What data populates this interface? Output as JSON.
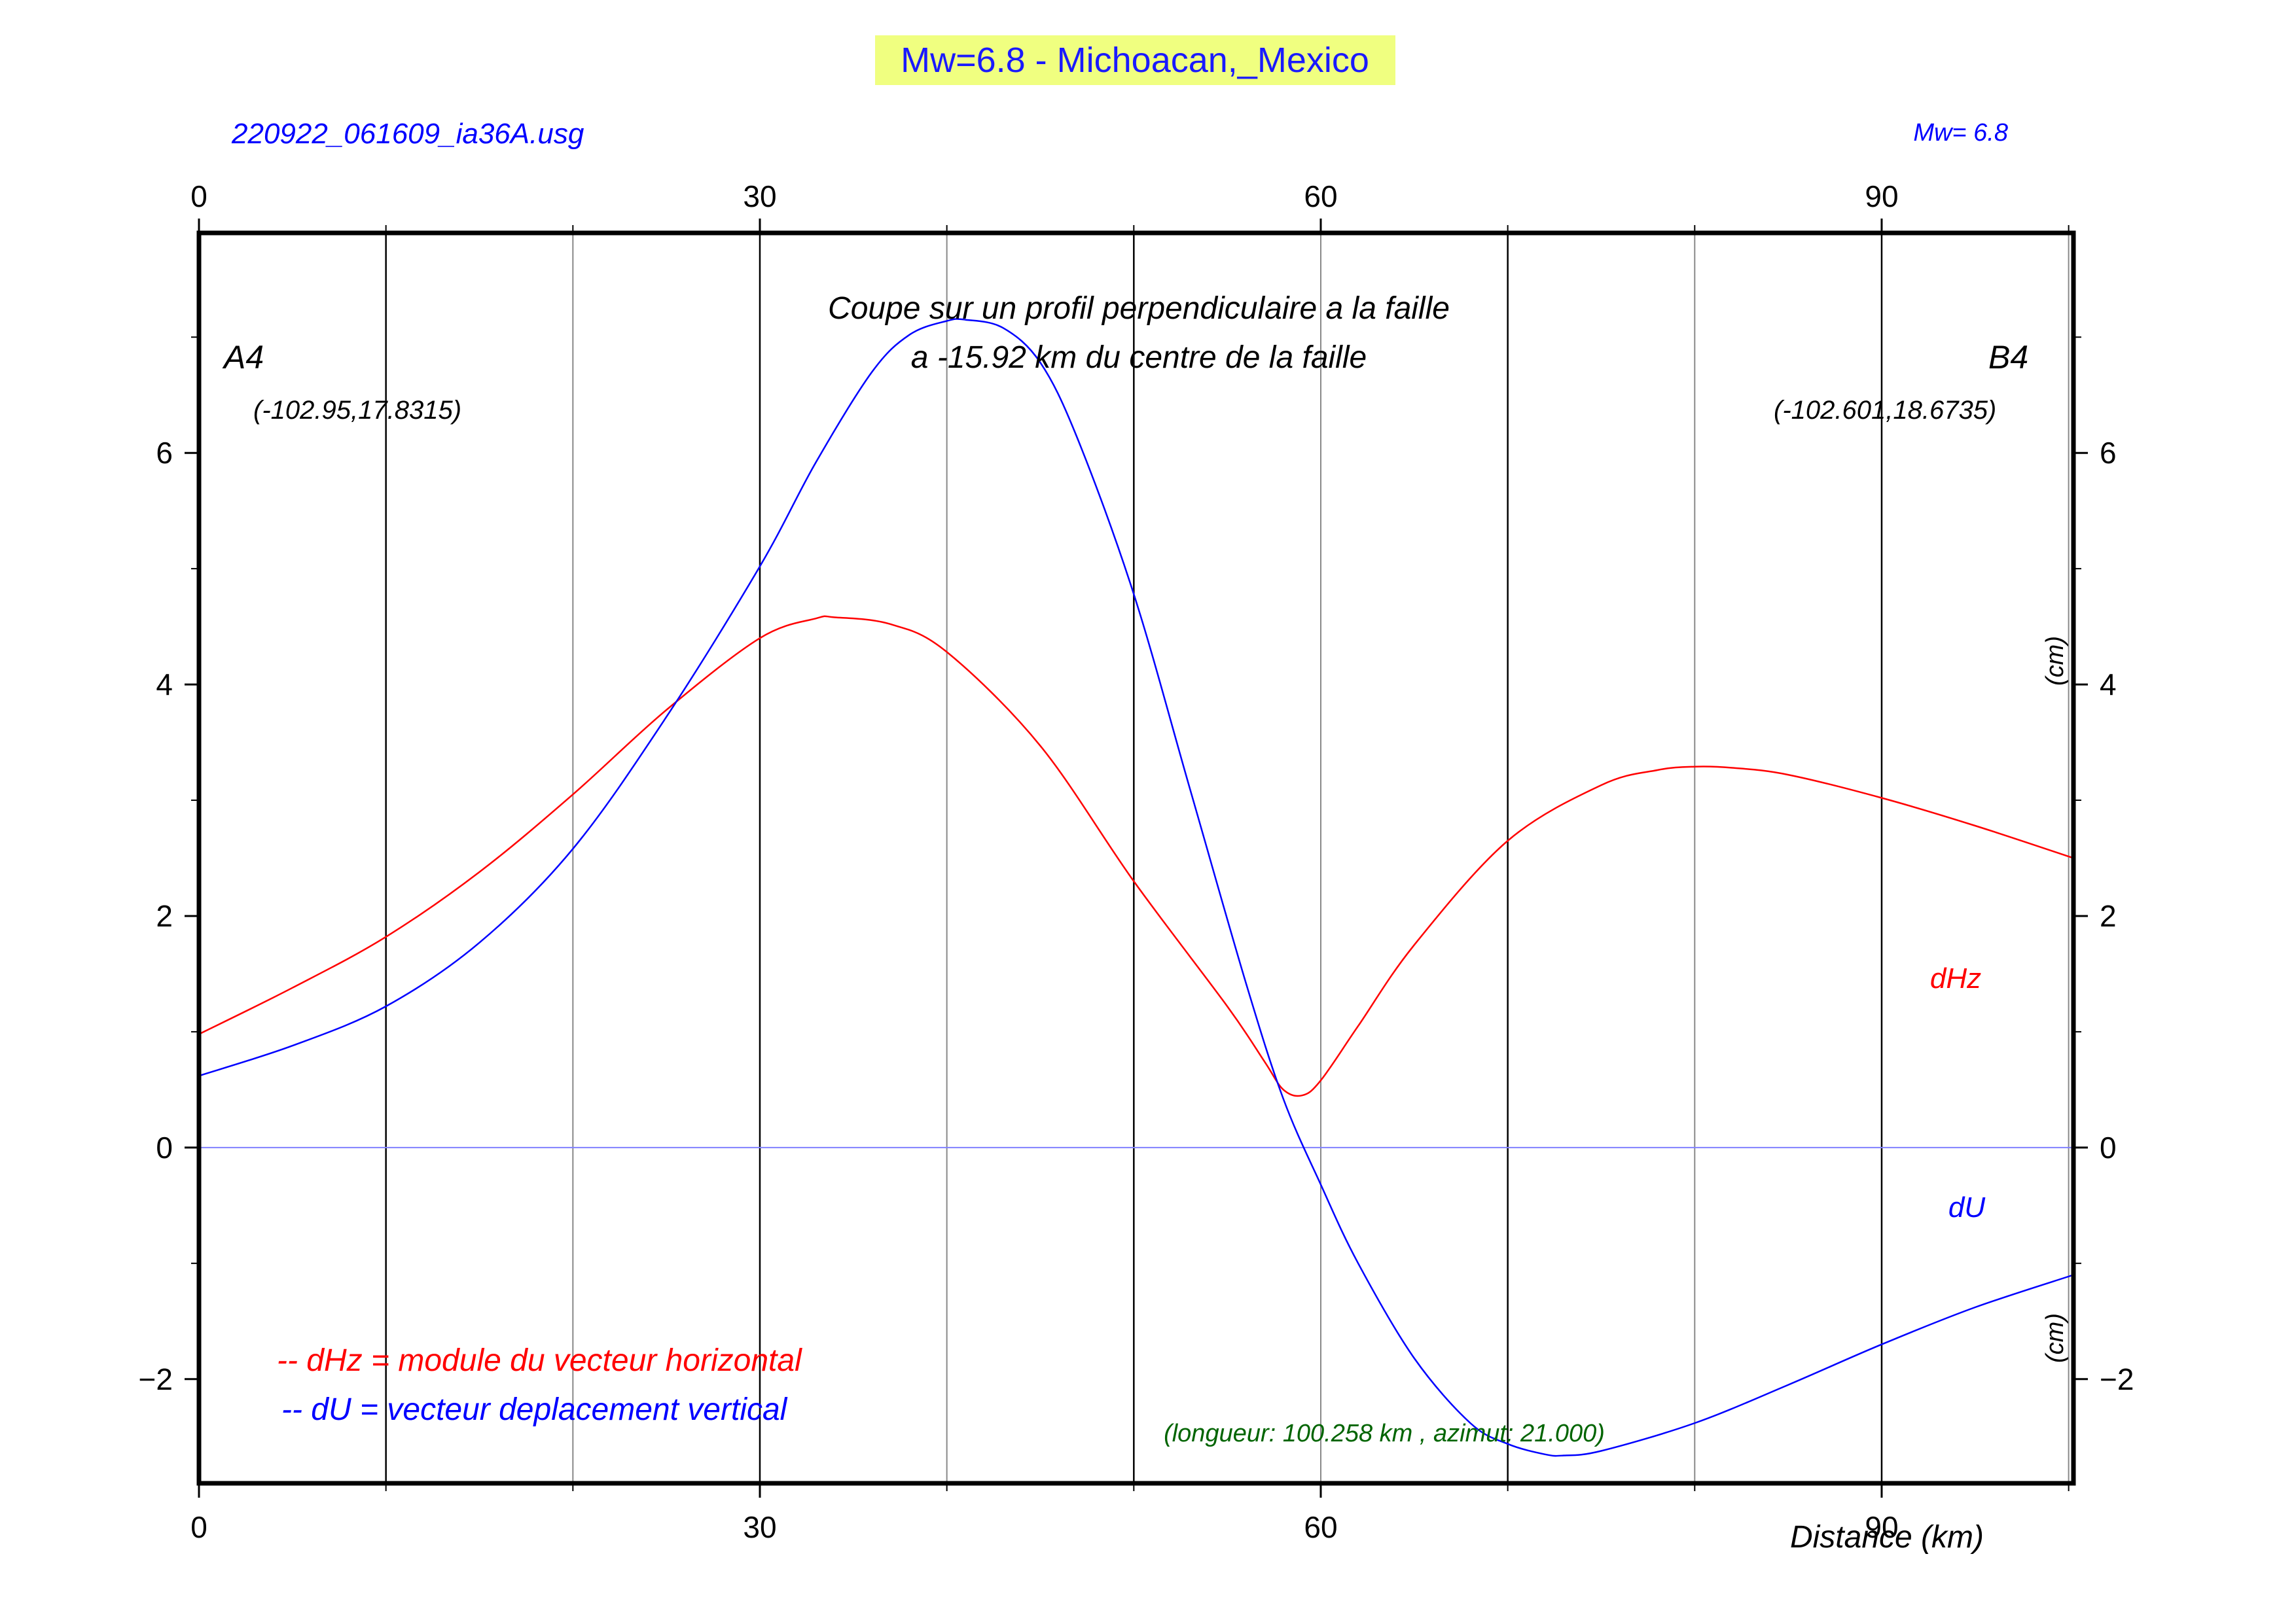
{
  "colors": {
    "title_bg": "#f0ff80",
    "title_text": "#1a1aff",
    "blue": "#0000ff",
    "red": "#ff0000",
    "green": "#006400",
    "grid_dark": "#000000",
    "grid_light": "#888888",
    "zero_line": "#8080ff"
  },
  "header": {
    "title": "Mw=6.8 - Michoacan,_Mexico",
    "file_label": "220922_061609_ia36A.usg",
    "magnitude_label": "Mw= 6.8"
  },
  "annotations": {
    "profile_line1": "Coupe sur un profil perpendiculaire a la faille",
    "profile_line2": "a -15.92 km du centre de la faille",
    "start_point": "A4",
    "start_coords": "(-102.95,17.8315)",
    "end_point": "B4",
    "end_coords": "(-102.601,18.6735)",
    "legend_dhz": "-- dHz = module du vecteur horizontal",
    "legend_du": "-- dU =  vecteur deplacement vertical",
    "label_dhz": "dHz",
    "label_du": "dU",
    "unit_upper": "(cm)",
    "unit_lower": "(cm)",
    "length_info": "(longueur: 100.258 km , azimut: 21.000)",
    "x_axis_label": "Distance (km)"
  },
  "chart_data": {
    "type": "line",
    "title": "Mw=6.8 - Michoacan,_Mexico",
    "xlabel": "Distance (km)",
    "ylabel": "(cm)",
    "xlim": [
      0,
      100.258
    ],
    "ylim": [
      -2.9,
      7.9
    ],
    "x_ticks": [
      0,
      30,
      60,
      90
    ],
    "y_ticks": [
      -2,
      0,
      2,
      4,
      6
    ],
    "x_tick_labels": [
      "0",
      "30",
      "60",
      "90"
    ],
    "y_tick_labels": [
      "−2",
      "0",
      "2",
      "4",
      "6"
    ],
    "grid_x": [
      10,
      20,
      30,
      40,
      50,
      60,
      70,
      80,
      90,
      100
    ],
    "grid": true,
    "series": [
      {
        "name": "dHz",
        "color": "#ff0000",
        "x": [
          0,
          5,
          10,
          15,
          20,
          25,
          30,
          33,
          34,
          37,
          40,
          45,
          50,
          55,
          57,
          58,
          59,
          60,
          62,
          65,
          70,
          75,
          78,
          80,
          82,
          85,
          90,
          95,
          100.258
        ],
        "y": [
          0.98,
          1.38,
          1.82,
          2.38,
          3.05,
          3.78,
          4.4,
          4.57,
          4.58,
          4.52,
          4.28,
          3.47,
          2.3,
          1.22,
          0.74,
          0.5,
          0.45,
          0.58,
          1.05,
          1.75,
          2.65,
          3.13,
          3.26,
          3.29,
          3.28,
          3.22,
          3.02,
          2.78,
          2.5
        ]
      },
      {
        "name": "dU",
        "color": "#0000ff",
        "x": [
          0,
          5,
          10,
          15,
          20,
          25,
          30,
          33,
          36,
          38,
          40,
          41,
          43,
          45,
          47,
          50,
          53,
          56,
          58,
          60,
          62,
          65,
          68,
          70,
          72,
          73,
          75,
          80,
          85,
          90,
          95,
          100.258
        ],
        "y": [
          0.62,
          0.88,
          1.22,
          1.77,
          2.58,
          3.72,
          5.02,
          5.92,
          6.7,
          7.02,
          7.14,
          7.15,
          7.08,
          6.78,
          6.12,
          4.78,
          3.1,
          1.42,
          0.42,
          -0.32,
          -1.0,
          -1.82,
          -2.38,
          -2.56,
          -2.65,
          -2.66,
          -2.62,
          -2.38,
          -2.05,
          -1.7,
          -1.38,
          -1.1
        ]
      }
    ]
  }
}
